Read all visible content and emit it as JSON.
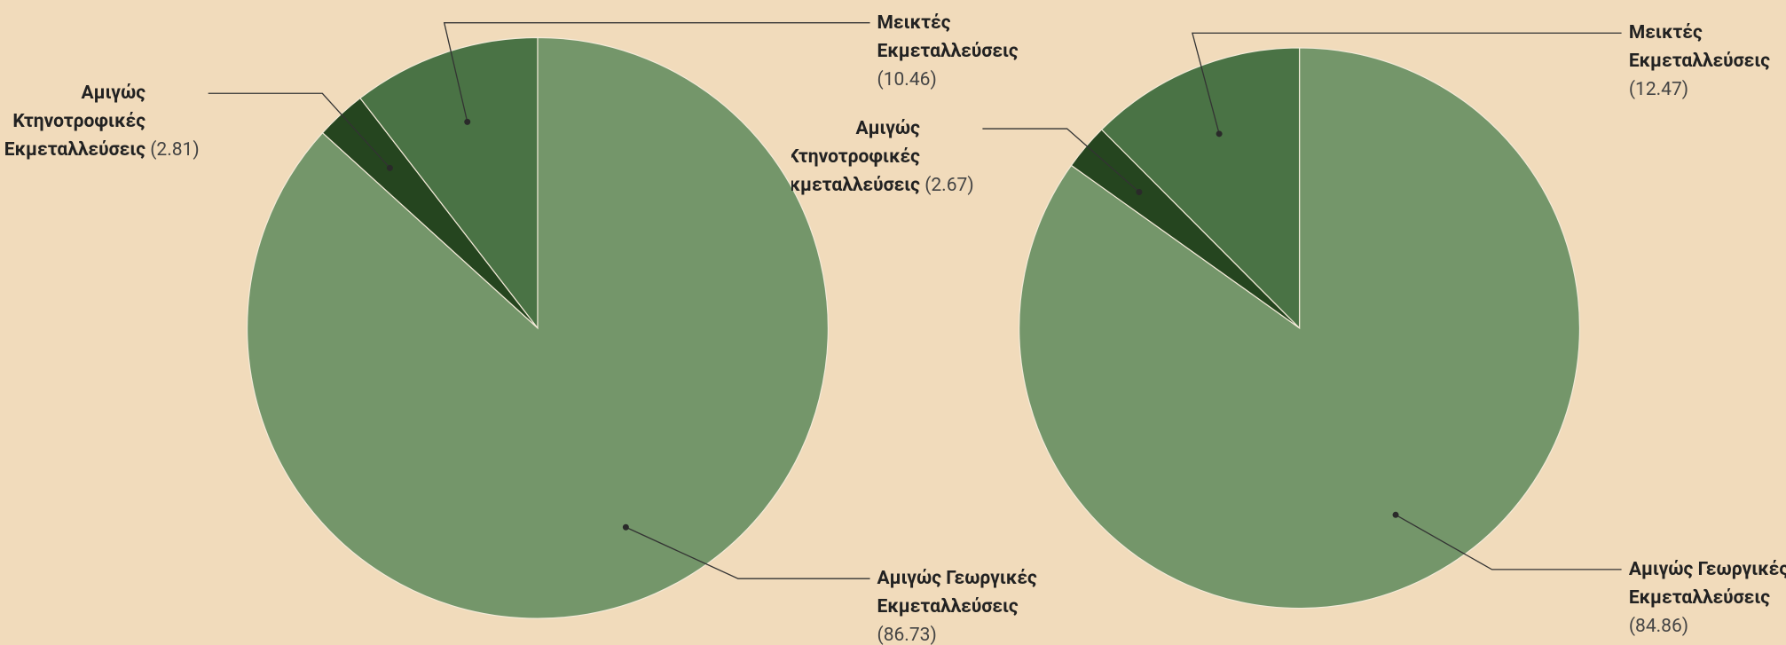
{
  "chart_data": [
    {
      "type": "pie",
      "categories": [
        "Αμιγώς Γεωργικές Εκμεταλλεύσεις",
        "Αμιγώς Κτηνοτροφικές Εκμεταλλεύσεις",
        "Μεικτές Εκμεταλλεύσεις"
      ],
      "values": [
        86.73,
        2.81,
        10.46
      ],
      "value_labels": [
        "(86.73)",
        "(2.81)",
        "(10.46)"
      ],
      "colors": [
        "#74966a",
        "#25451f",
        "#4a7345"
      ]
    },
    {
      "type": "pie",
      "categories": [
        "Αμιγώς Γεωργικές Εκμεταλλεύσεις",
        "Αμιγώς Κτηνοτροφικές Εκμεταλλεύσεις",
        "Μεικτές Εκμεταλλεύσεις"
      ],
      "values": [
        84.86,
        2.67,
        12.47
      ],
      "value_labels": [
        "(84.86)",
        "(2.67)",
        "(12.47)"
      ],
      "colors": [
        "#74966a",
        "#25451f",
        "#4a7345"
      ]
    }
  ]
}
